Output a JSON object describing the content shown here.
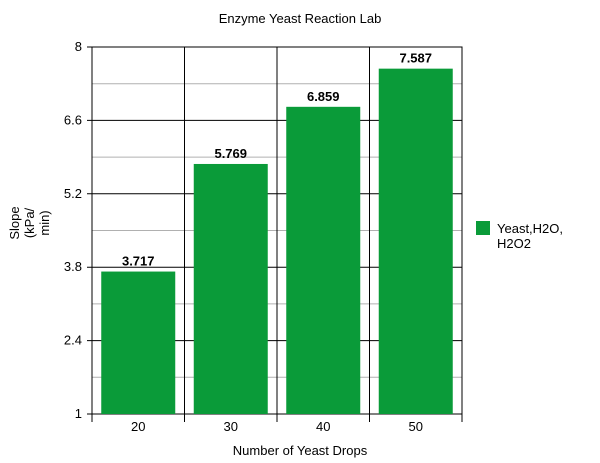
{
  "chart_data": {
    "type": "bar",
    "title": "Enzyme Yeast Reaction Lab",
    "xlabel": "Number of Yeast Drops",
    "ylabel_lines": [
      "Slope",
      "(kPa/",
      "min)"
    ],
    "categories": [
      "20",
      "30",
      "40",
      "50"
    ],
    "series": [
      {
        "name_lines": [
          "Yeast,H2O,",
          "H2O2"
        ],
        "values": [
          3.717,
          5.769,
          6.859,
          7.587
        ],
        "color": "#0a9b39"
      }
    ],
    "ylim": [
      1,
      8
    ],
    "yticks": [
      1,
      2.4,
      3.8,
      5.2,
      6.6,
      8
    ],
    "yticks_labels": [
      "1",
      "2.4",
      "3.8",
      "5.2",
      "6.6",
      "8"
    ],
    "data_labels": [
      "3.717",
      "5.769",
      "6.859",
      "7.587"
    ],
    "grid": true,
    "legend": "right"
  }
}
